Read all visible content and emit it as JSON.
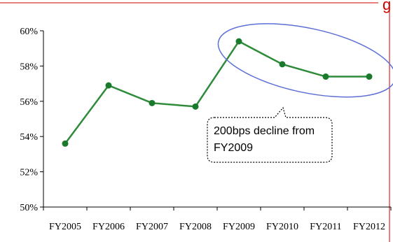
{
  "chart_data": {
    "type": "line",
    "categories": [
      "FY2005",
      "FY2006",
      "FY2007",
      "FY2008",
      "FY2009",
      "FY2010",
      "FY2011",
      "FY2012"
    ],
    "values": [
      53.6,
      56.9,
      55.9,
      55.7,
      59.4,
      58.1,
      57.4,
      57.4
    ],
    "ylim": [
      50,
      60
    ],
    "yticks": [
      50,
      52,
      54,
      56,
      58,
      60
    ],
    "ytick_labels": [
      "50%",
      "52%",
      "54%",
      "56%",
      "58%",
      "60%"
    ],
    "grid": false,
    "line_color": "#2e8b3a",
    "marker_color": "#1a7a2c",
    "annotation": {
      "line1": "200bps decline from",
      "line2": "FY2009",
      "highlight_color": "#5b6fd6"
    },
    "frame_color": "#cc0000"
  }
}
